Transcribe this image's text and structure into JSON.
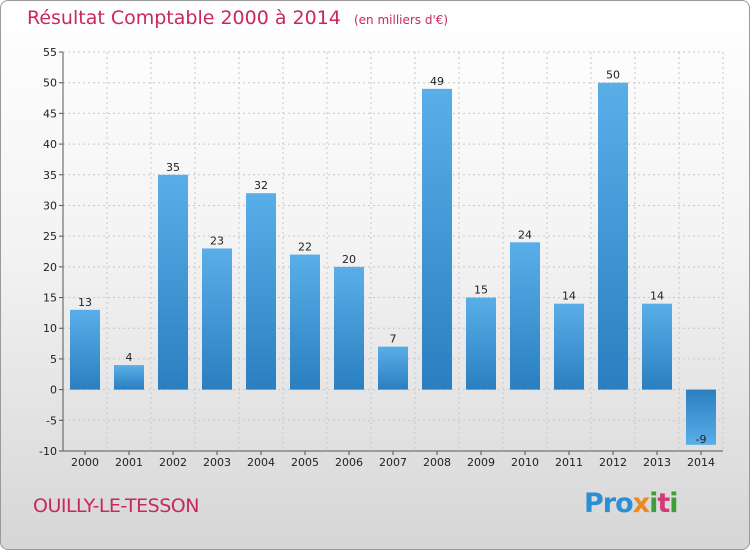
{
  "header": {
    "title": "Résultat Comptable 2000 à 2014",
    "unit": "(en milliers d'€)"
  },
  "footer": {
    "city": "OUILLY-LE-TESSON",
    "brand": "Proxiti"
  },
  "colors": {
    "title": "#c8285a",
    "bar_light": "#5aaee8",
    "bar_dark": "#2a7fc0"
  },
  "chart_data": {
    "type": "bar",
    "title": "Résultat Comptable 2000 à 2014",
    "subtitle": "(en milliers d'€)",
    "xlabel": "",
    "ylabel": "",
    "categories": [
      "2000",
      "2001",
      "2002",
      "2003",
      "2004",
      "2005",
      "2006",
      "2007",
      "2008",
      "2009",
      "2010",
      "2011",
      "2012",
      "2013",
      "2014"
    ],
    "values": [
      13,
      4,
      35,
      23,
      32,
      22,
      20,
      7,
      49,
      15,
      24,
      14,
      50,
      14,
      -9
    ],
    "ylim": [
      -10,
      55
    ],
    "yticks": [
      -10,
      -5,
      0,
      5,
      10,
      15,
      20,
      25,
      30,
      35,
      40,
      45,
      50,
      55
    ],
    "grid": true,
    "legend": "none"
  }
}
